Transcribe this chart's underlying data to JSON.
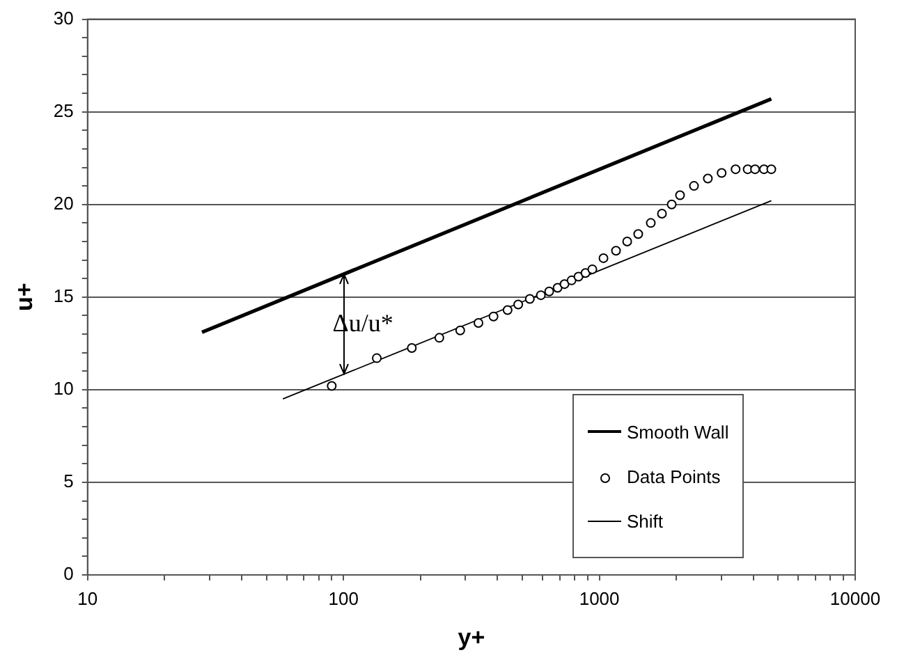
{
  "chart_data": {
    "type": "line",
    "xlabel": "y+",
    "ylabel": "u+",
    "log": "x",
    "grid": "y",
    "legend": "bottom right",
    "xlim": [
      10,
      10000
    ],
    "xticks": [
      10,
      {
        "value": 20,
        "label": null
      },
      {
        "value": 30,
        "label": null
      },
      {
        "value": 40,
        "label": null
      },
      {
        "value": 50,
        "label": null
      },
      {
        "value": 60,
        "label": null
      },
      {
        "value": 70,
        "label": null
      },
      {
        "value": 80,
        "label": null
      },
      {
        "value": 90,
        "label": null
      },
      100,
      {
        "value": 200,
        "label": null
      },
      {
        "value": 300,
        "label": null
      },
      {
        "value": 400,
        "label": null
      },
      {
        "value": 500,
        "label": null
      },
      {
        "value": 600,
        "label": null
      },
      {
        "value": 700,
        "label": null
      },
      {
        "value": 800,
        "label": null
      },
      {
        "value": 900,
        "label": null
      },
      1000,
      {
        "value": 2000,
        "label": null
      },
      {
        "value": 3000,
        "label": null
      },
      {
        "value": 4000,
        "label": null
      },
      {
        "value": 5000,
        "label": null
      },
      {
        "value": 6000,
        "label": null
      },
      {
        "value": 7000,
        "label": null
      },
      {
        "value": 8000,
        "label": null
      },
      {
        "value": 9000,
        "label": null
      },
      10000
    ],
    "ylim": [
      0,
      30
    ],
    "yticks": [
      0,
      {
        "value": 1,
        "label": null
      },
      {
        "value": 2,
        "label": null
      },
      {
        "value": 3,
        "label": null
      },
      {
        "value": 4,
        "label": null
      },
      5,
      {
        "value": 6,
        "label": null
      },
      {
        "value": 7,
        "label": null
      },
      {
        "value": 8,
        "label": null
      },
      {
        "value": 9,
        "label": null
      },
      10,
      {
        "value": 11,
        "label": null
      },
      {
        "value": 12,
        "label": null
      },
      {
        "value": 13,
        "label": null
      },
      {
        "value": 14,
        "label": null
      },
      15,
      {
        "value": 16,
        "label": null
      },
      {
        "value": 17,
        "label": null
      },
      {
        "value": 18,
        "label": null
      },
      {
        "value": 19,
        "label": null
      },
      20,
      {
        "value": 21,
        "label": null
      },
      {
        "value": 22,
        "label": null
      },
      {
        "value": 23,
        "label": null
      },
      {
        "value": 24,
        "label": null
      },
      25,
      {
        "value": 26,
        "label": null
      },
      {
        "value": 27,
        "label": null
      },
      {
        "value": 28,
        "label": null
      },
      {
        "value": 29,
        "label": null
      },
      30
    ],
    "series": [
      {
        "name": "Smooth Wall",
        "color": "#000000",
        "marker": "none",
        "x": [
          28,
          4700
        ],
        "values": [
          13.1,
          25.7
        ]
      },
      {
        "name": "Data Points",
        "type": "scatter",
        "color": "#000000",
        "marker": "circle",
        "x": [
          90,
          135,
          185,
          237,
          286,
          337,
          386,
          438,
          482,
          535,
          591,
          637,
          687,
          731,
          779,
          829,
          883,
          939,
          1038,
          1162,
          1285,
          1419,
          1589,
          1757,
          1918,
          2067,
          2344,
          2655,
          3006,
          3408,
          3800,
          4060,
          4400,
          4700
        ],
        "values": [
          10.2,
          11.7,
          12.25,
          12.8,
          13.2,
          13.6,
          13.95,
          14.3,
          14.6,
          14.9,
          15.1,
          15.3,
          15.5,
          15.7,
          15.9,
          16.1,
          16.3,
          16.5,
          17.1,
          17.5,
          18.0,
          18.4,
          19.0,
          19.5,
          20.0,
          20.5,
          21.0,
          21.4,
          21.7,
          21.9,
          21.9,
          21.9,
          21.9,
          21.9
        ]
      },
      {
        "name": "Shift",
        "color": "#000000",
        "marker": "none",
        "x": [
          58,
          4700
        ],
        "values": [
          9.5,
          20.2
        ]
      }
    ],
    "annotations": [
      {
        "text": "Δu/u*",
        "x": 100,
        "y": 16.2
      }
    ]
  }
}
